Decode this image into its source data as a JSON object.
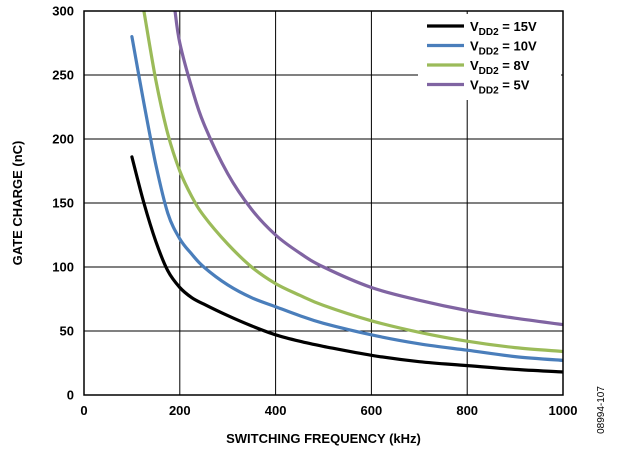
{
  "chart_data": {
    "type": "line",
    "xlabel": "SWITCHING FREQUENCY (kHz)",
    "ylabel": "GATE CHARGE (nC)",
    "xlim": [
      0,
      1000
    ],
    "ylim": [
      0,
      300
    ],
    "xticks": [
      0,
      200,
      400,
      600,
      800,
      1000
    ],
    "yticks": [
      0,
      50,
      100,
      150,
      200,
      250,
      300
    ],
    "grid": true,
    "legend_position": "top-right",
    "series": [
      {
        "name": "V_DD2 = 15V",
        "label_main": "V",
        "label_sub": "DD2",
        "label_rest": " = 15V",
        "color": "#000000",
        "x": [
          100,
          125,
          150,
          175,
          200,
          225,
          250,
          300,
          350,
          400,
          450,
          500,
          600,
          700,
          800,
          900,
          1000
        ],
        "y": [
          186,
          150,
          120,
          97,
          84,
          76,
          71,
          62,
          54,
          47,
          42,
          38,
          31,
          26,
          23,
          20,
          18
        ]
      },
      {
        "name": "V_DD2 = 10V",
        "label_main": "V",
        "label_sub": "DD2",
        "label_rest": " = 10V",
        "color": "#4a7ebb",
        "x": [
          100,
          125,
          150,
          175,
          200,
          225,
          250,
          300,
          350,
          400,
          450,
          500,
          600,
          700,
          800,
          900,
          1000
        ],
        "y": [
          280,
          228,
          180,
          142,
          122,
          110,
          100,
          86,
          76,
          69,
          62,
          56,
          47,
          40,
          35,
          30,
          27
        ]
      },
      {
        "name": "V_DD2 = 8V",
        "label_main": "V",
        "label_sub": "DD2",
        "label_rest": " = 8V",
        "color": "#9bbb59",
        "x": [
          125,
          150,
          175,
          200,
          225,
          250,
          300,
          350,
          400,
          450,
          500,
          600,
          700,
          800,
          900,
          1000
        ],
        "y": [
          300,
          246,
          204,
          175,
          155,
          140,
          118,
          100,
          87,
          78,
          70,
          58,
          49,
          42,
          37,
          34
        ]
      },
      {
        "name": "V_DD2 = 5V",
        "label_main": "V",
        "label_sub": "DD2",
        "label_rest": " = 5V",
        "color": "#8064a2",
        "x": [
          190,
          200,
          225,
          250,
          300,
          350,
          400,
          450,
          500,
          600,
          700,
          800,
          900,
          1000
        ],
        "y": [
          300,
          275,
          240,
          212,
          173,
          145,
          125,
          111,
          100,
          84,
          74,
          66,
          60,
          55
        ]
      }
    ]
  },
  "figure_id": "08994-107"
}
